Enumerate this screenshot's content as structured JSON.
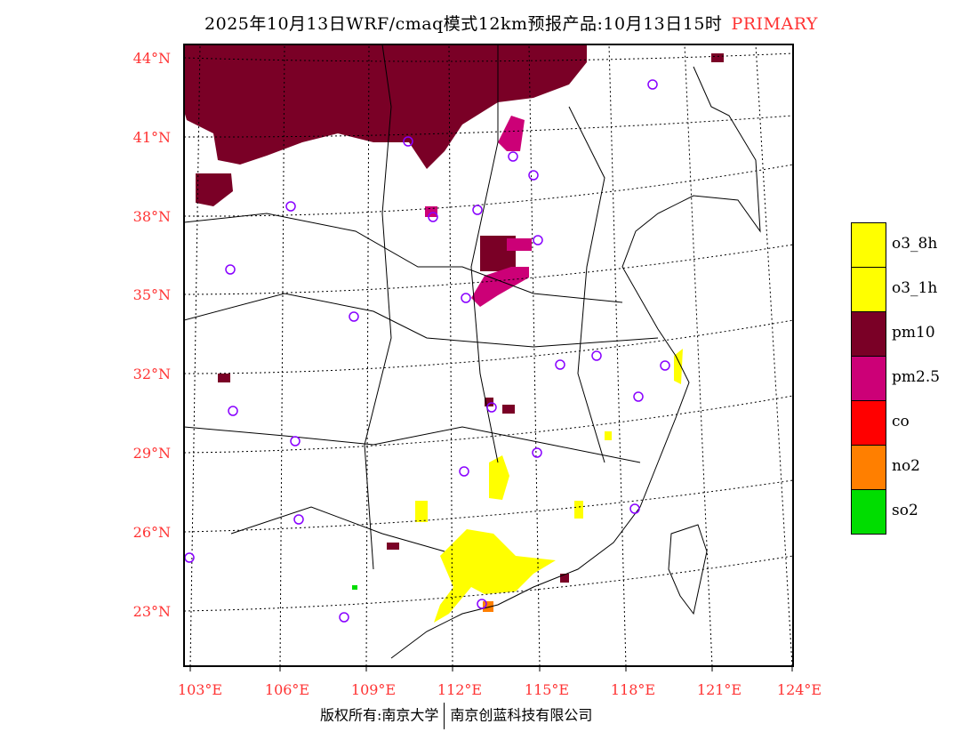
{
  "title": {
    "text": "2025年10月13日WRF/cmaq模式12km预报产品:10月13日15时",
    "variable": "PRIMARY"
  },
  "axes": {
    "latitude_labels": [
      "44°N",
      "41°N",
      "38°N",
      "35°N",
      "32°N",
      "29°N",
      "26°N",
      "23°N"
    ],
    "longitude_labels": [
      "103°E",
      "106°E",
      "109°E",
      "112°E",
      "115°E",
      "118°E",
      "121°E",
      "124°E"
    ]
  },
  "legend": [
    {
      "label": "o3_8h",
      "color": "#ffff00"
    },
    {
      "label": "o3_1h",
      "color": "#ffff00"
    },
    {
      "label": "pm10",
      "color": "#7a0026"
    },
    {
      "label": "pm2.5",
      "color": "#cc0077"
    },
    {
      "label": "co",
      "color": "#ff0000"
    },
    {
      "label": "no2",
      "color": "#ff7f00"
    },
    {
      "label": "so2",
      "color": "#00dd00"
    }
  ],
  "footer": {
    "copyright": "版权所有:南京大学",
    "company": "南京创蓝科技有限公司"
  },
  "colors": {
    "label_red": "#ff3333",
    "city_marker": "#8800ff"
  }
}
